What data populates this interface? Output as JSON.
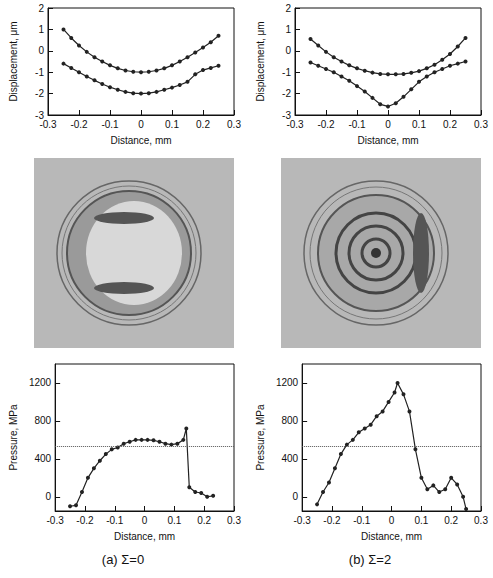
{
  "chart_data": [
    {
      "type": "line",
      "xlabel": "Distance, mm",
      "ylabel": "Displacement, μm",
      "xlim": [
        -0.3,
        0.3
      ],
      "xticks": [
        -0.3,
        -0.2,
        -0.1,
        0,
        0.1,
        0.2,
        0.3
      ],
      "ylim": [
        -3,
        2
      ],
      "yticks": [
        -3,
        -2,
        -1,
        0,
        1,
        2
      ],
      "grid": false,
      "x": [
        -0.25,
        -0.225,
        -0.2,
        -0.175,
        -0.15,
        -0.125,
        -0.1,
        -0.075,
        -0.05,
        -0.025,
        0,
        0.025,
        0.05,
        0.075,
        0.1,
        0.125,
        0.15,
        0.175,
        0.2,
        0.225,
        0.25
      ],
      "series": [
        {
          "color": "#222222",
          "marker": "circle",
          "values": [
            1.0,
            0.6,
            0.25,
            -0.05,
            -0.3,
            -0.5,
            -0.68,
            -0.82,
            -0.92,
            -0.98,
            -1.0,
            -0.98,
            -0.92,
            -0.82,
            -0.68,
            -0.5,
            -0.3,
            -0.08,
            0.15,
            0.4,
            0.7
          ]
        },
        {
          "color": "#222222",
          "marker": "circle",
          "values": [
            -0.6,
            -0.8,
            -1.0,
            -1.2,
            -1.38,
            -1.55,
            -1.7,
            -1.82,
            -1.92,
            -1.98,
            -2.0,
            -1.98,
            -1.92,
            -1.82,
            -1.72,
            -1.6,
            -1.45,
            -1.1,
            -0.9,
            -0.8,
            -0.7
          ]
        }
      ]
    },
    {
      "type": "line",
      "xlabel": "Distance, mm",
      "ylabel": "Displacement, μm",
      "xlim": [
        -0.3,
        0.3
      ],
      "xticks": [
        -0.3,
        -0.2,
        -0.1,
        0,
        0.1,
        0.2,
        0.3
      ],
      "ylim": [
        -3,
        2
      ],
      "yticks": [
        -3,
        -2,
        -1,
        0,
        1,
        2
      ],
      "grid": false,
      "x": [
        -0.25,
        -0.225,
        -0.2,
        -0.175,
        -0.15,
        -0.125,
        -0.1,
        -0.075,
        -0.05,
        -0.025,
        0,
        0.025,
        0.05,
        0.075,
        0.1,
        0.125,
        0.15,
        0.175,
        0.2,
        0.225,
        0.25
      ],
      "series": [
        {
          "color": "#222222",
          "marker": "circle",
          "values": [
            0.55,
            0.25,
            -0.05,
            -0.3,
            -0.5,
            -0.68,
            -0.82,
            -0.93,
            -1.02,
            -1.08,
            -1.1,
            -1.1,
            -1.08,
            -1.03,
            -0.95,
            -0.82,
            -0.65,
            -0.42,
            -0.15,
            0.2,
            0.6
          ]
        },
        {
          "color": "#222222",
          "marker": "circle",
          "values": [
            -0.55,
            -0.7,
            -0.85,
            -1.0,
            -1.2,
            -1.4,
            -1.65,
            -1.9,
            -2.2,
            -2.5,
            -2.6,
            -2.45,
            -2.15,
            -1.8,
            -1.45,
            -1.2,
            -1.0,
            -0.85,
            -0.7,
            -0.6,
            -0.5
          ]
        }
      ]
    },
    {
      "type": "line",
      "xlabel": "Distance, mm",
      "ylabel": "Pressure, MPa",
      "xlim": [
        -0.3,
        0.3
      ],
      "xticks": [
        -0.3,
        -0.2,
        -0.1,
        0,
        0.1,
        0.2,
        0.3
      ],
      "ylim": [
        -150,
        1400
      ],
      "yticks": [
        0,
        400,
        800,
        1200
      ],
      "grid": false,
      "hline": 530,
      "x": [
        -0.25,
        -0.23,
        -0.21,
        -0.19,
        -0.17,
        -0.15,
        -0.13,
        -0.11,
        -0.09,
        -0.07,
        -0.05,
        -0.03,
        -0.01,
        0.01,
        0.03,
        0.05,
        0.07,
        0.09,
        0.11,
        0.13,
        0.14,
        0.15,
        0.17,
        0.19,
        0.21,
        0.23
      ],
      "series": [
        {
          "color": "#222222",
          "marker": "circle",
          "values": [
            -100,
            -90,
            50,
            200,
            300,
            380,
            450,
            500,
            520,
            560,
            580,
            600,
            600,
            600,
            595,
            580,
            560,
            550,
            560,
            600,
            720,
            100,
            50,
            40,
            0,
            10
          ]
        }
      ]
    },
    {
      "type": "line",
      "xlabel": "Distance, mm",
      "ylabel": "Pressure, MPa",
      "xlim": [
        -0.3,
        0.3
      ],
      "xticks": [
        -0.3,
        -0.2,
        -0.1,
        0,
        0.1,
        0.2,
        0.3
      ],
      "ylim": [
        -150,
        1400
      ],
      "yticks": [
        0,
        400,
        800,
        1200
      ],
      "grid": false,
      "hline": 530,
      "x": [
        -0.25,
        -0.23,
        -0.21,
        -0.19,
        -0.17,
        -0.15,
        -0.13,
        -0.11,
        -0.09,
        -0.07,
        -0.05,
        -0.03,
        -0.01,
        0.01,
        0.02,
        0.04,
        0.06,
        0.08,
        0.1,
        0.12,
        0.14,
        0.16,
        0.18,
        0.2,
        0.22,
        0.24,
        0.25
      ],
      "series": [
        {
          "color": "#222222",
          "marker": "circle",
          "values": [
            -80,
            50,
            150,
            300,
            450,
            550,
            600,
            680,
            720,
            760,
            850,
            900,
            1000,
            1100,
            1200,
            1080,
            900,
            500,
            200,
            80,
            120,
            50,
            80,
            200,
            130,
            0,
            -130
          ]
        }
      ]
    }
  ],
  "captions": [
    "(a) Σ=0",
    "(b) Σ=2"
  ]
}
